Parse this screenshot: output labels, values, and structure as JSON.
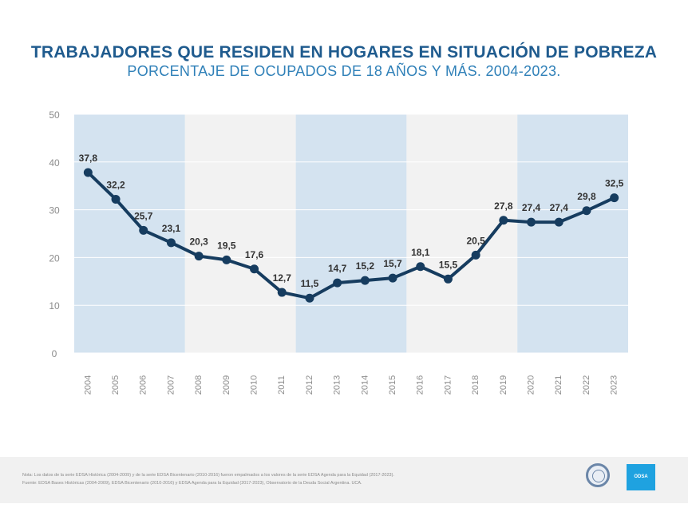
{
  "title": "TRABAJADORES QUE RESIDEN EN HOGARES EN SITUACIÓN DE POBREZA",
  "subtitle": "PORCENTAJE DE OCUPADOS DE 18 AÑOS Y MÁS. 2004-2023.",
  "footer": {
    "note_line1": "Nota: Los datos de la serie EDSA Histórica (2004-2009) y de la serie EDSA Bicentenario (2010-2016) fueron empalmados a los valores de la serie EDSA Agenda para la Equidad (2017-2023).",
    "note_line2": "Fuente: EDSA Bases Históricas (2004-2009), EDSA Bicentenario (2010-2016) y EDSA Agenda para la Equidad (2017-2023), Observatorio de la Deuda Social Argentina. UCA.",
    "brand_text": "ODSA"
  },
  "colors": {
    "line": "#163c5f",
    "title": "#1f5b8e",
    "subtitle": "#2f80b8",
    "band_blue": "#d4e3f0",
    "band_grey": "#f2f2f2",
    "brand": "#1fa2e0"
  },
  "chart_data": {
    "type": "line",
    "title": "TRABAJADORES QUE RESIDEN EN HOGARES EN SITUACIÓN DE POBREZA",
    "subtitle": "PORCENTAJE DE OCUPADOS DE 18 AÑOS Y MÁS. 2004-2023.",
    "xlabel": "",
    "ylabel": "",
    "ylim": [
      0,
      50
    ],
    "yticks": [
      "0",
      "10",
      "20",
      "30",
      "40",
      "50"
    ],
    "grid": true,
    "categories": [
      "2004",
      "2005",
      "2006",
      "2007",
      "2008",
      "2009",
      "2010",
      "2011",
      "2012",
      "2013",
      "2014",
      "2015",
      "2016",
      "2017",
      "2018",
      "2019",
      "2020",
      "2021",
      "2022",
      "2023"
    ],
    "values": [
      37.8,
      32.2,
      25.7,
      23.1,
      20.3,
      19.5,
      17.6,
      12.7,
      11.5,
      14.7,
      15.2,
      15.7,
      18.1,
      15.5,
      20.5,
      27.8,
      27.4,
      27.4,
      29.8,
      32.5
    ],
    "data_labels": [
      "37,8",
      "32,2",
      "25,7",
      "23,1",
      "20,3",
      "19,5",
      "17,6",
      "12,7",
      "11,5",
      "14,7",
      "15,2",
      "15,7",
      "18,1",
      "15,5",
      "20,5",
      "27,8",
      "27,4",
      "27,4",
      "29,8",
      "32,5"
    ],
    "bands": [
      {
        "from": "2004",
        "to": "2007",
        "style": "blue"
      },
      {
        "from": "2008",
        "to": "2011",
        "style": "grey"
      },
      {
        "from": "2012",
        "to": "2015",
        "style": "blue"
      },
      {
        "from": "2016",
        "to": "2019",
        "style": "grey"
      },
      {
        "from": "2020",
        "to": "2023",
        "style": "blue"
      }
    ]
  }
}
